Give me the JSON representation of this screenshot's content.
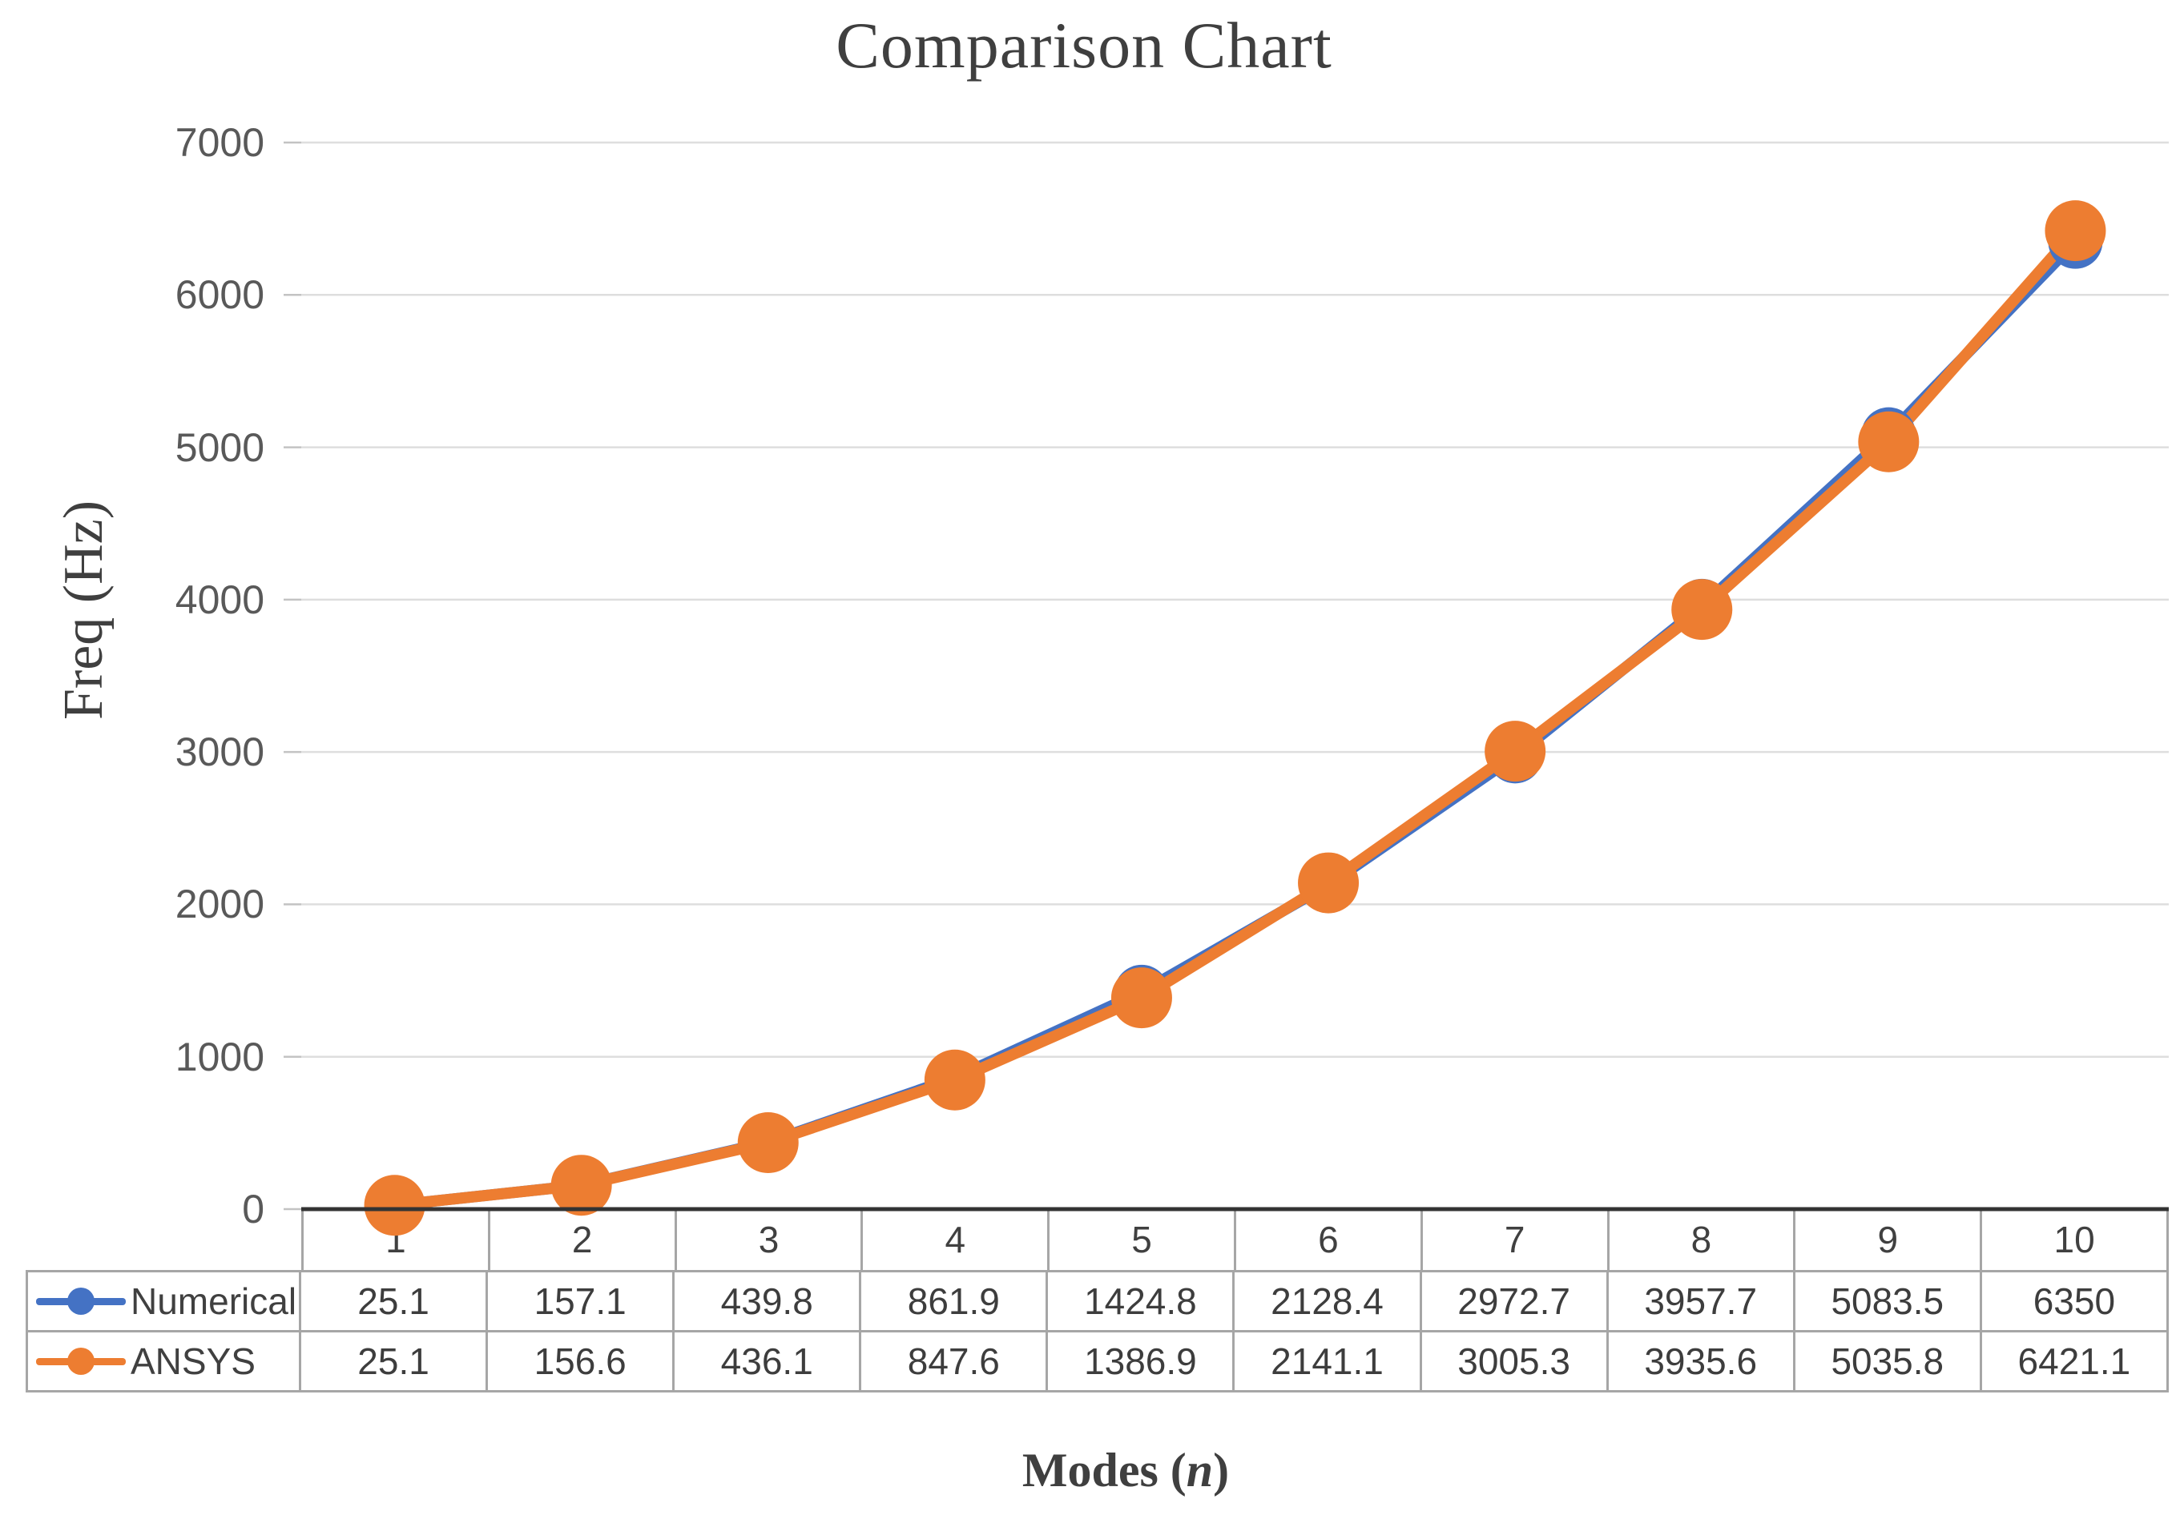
{
  "figure": {
    "title": "Comparison Chart",
    "background_color": "#ffffff",
    "title_color": "#3f3f3f"
  },
  "y_axis": {
    "label": "Freq (Hz)",
    "ticks": [
      0,
      1000,
      2000,
      3000,
      4000,
      5000,
      6000,
      7000
    ],
    "range": [
      0,
      7000
    ],
    "tick_color": "#595959"
  },
  "x_axis": {
    "label_pre": "Modes (",
    "label_var": "n",
    "label_post": ")",
    "full_label": "Modes (n)"
  },
  "chart_data": {
    "type": "line",
    "title": "Comparison Chart",
    "xlabel": "Modes (n)",
    "ylabel": "Freq (Hz)",
    "categories": [
      1,
      2,
      3,
      4,
      5,
      6,
      7,
      8,
      9,
      10
    ],
    "series": [
      {
        "name": "Numerical",
        "color": "#4472C4",
        "values": [
          25.1,
          157.1,
          439.8,
          861.9,
          1424.8,
          2128.4,
          2972.7,
          3957.7,
          5083.5,
          6350
        ]
      },
      {
        "name": "ANSYS",
        "color": "#ED7D31",
        "values": [
          25.1,
          156.6,
          436.1,
          847.6,
          1386.9,
          2141.1,
          3005.3,
          3935.6,
          5035.8,
          6421.1
        ]
      }
    ],
    "ylim": [
      0,
      7000
    ],
    "grid": "horizontal-major",
    "legend_position": "data-table-left",
    "data_table_shown": true
  },
  "colors": {
    "gridline": "#dedede",
    "axis_line": "#333333",
    "tick_mark": "#c3c3c3",
    "table_border": "#a6a6a6",
    "text": "#404040"
  }
}
